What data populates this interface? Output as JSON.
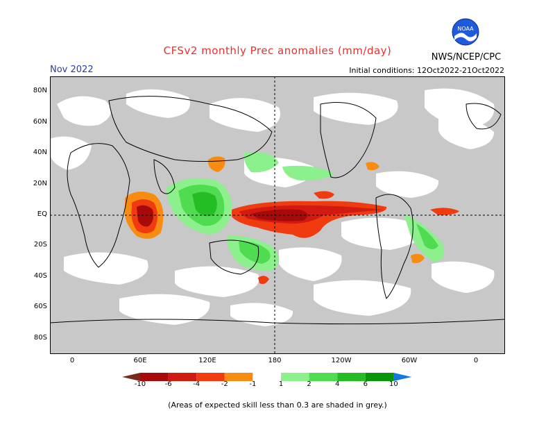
{
  "title": "CFSv2 monthly Prec anomalies (mm/day)",
  "month": "Nov 2022",
  "initial_conditions": "Initial conditions: 12Oct2022-21Oct2022",
  "agency": "NWS/NCEP/CPC",
  "logo": {
    "text": "NOAA"
  },
  "lat_labels": [
    "80N",
    "60N",
    "40N",
    "20N",
    "EQ",
    "20S",
    "40S",
    "60S",
    "80S"
  ],
  "lon_labels": [
    "0",
    "60E",
    "120E",
    "180",
    "120W",
    "60W",
    "0"
  ],
  "colorbar": {
    "labels": [
      "-10",
      "-6",
      "-4",
      "-2",
      "-1",
      "1",
      "2",
      "4",
      "6",
      "10"
    ],
    "colors": [
      "#7a2a1a",
      "#a80a0a",
      "#d01a12",
      "#f03a10",
      "#f88c10",
      "#ffffff",
      "#8cf08c",
      "#50dc50",
      "#24be24",
      "#0a960a",
      "#1478dc"
    ]
  },
  "note": "(Areas of expected skill less than 0.3 are shaded in grey.)",
  "colors": {
    "title": "#e8302a",
    "month": "#2a3aa8",
    "skill_grey": "#c8c8c8"
  }
}
